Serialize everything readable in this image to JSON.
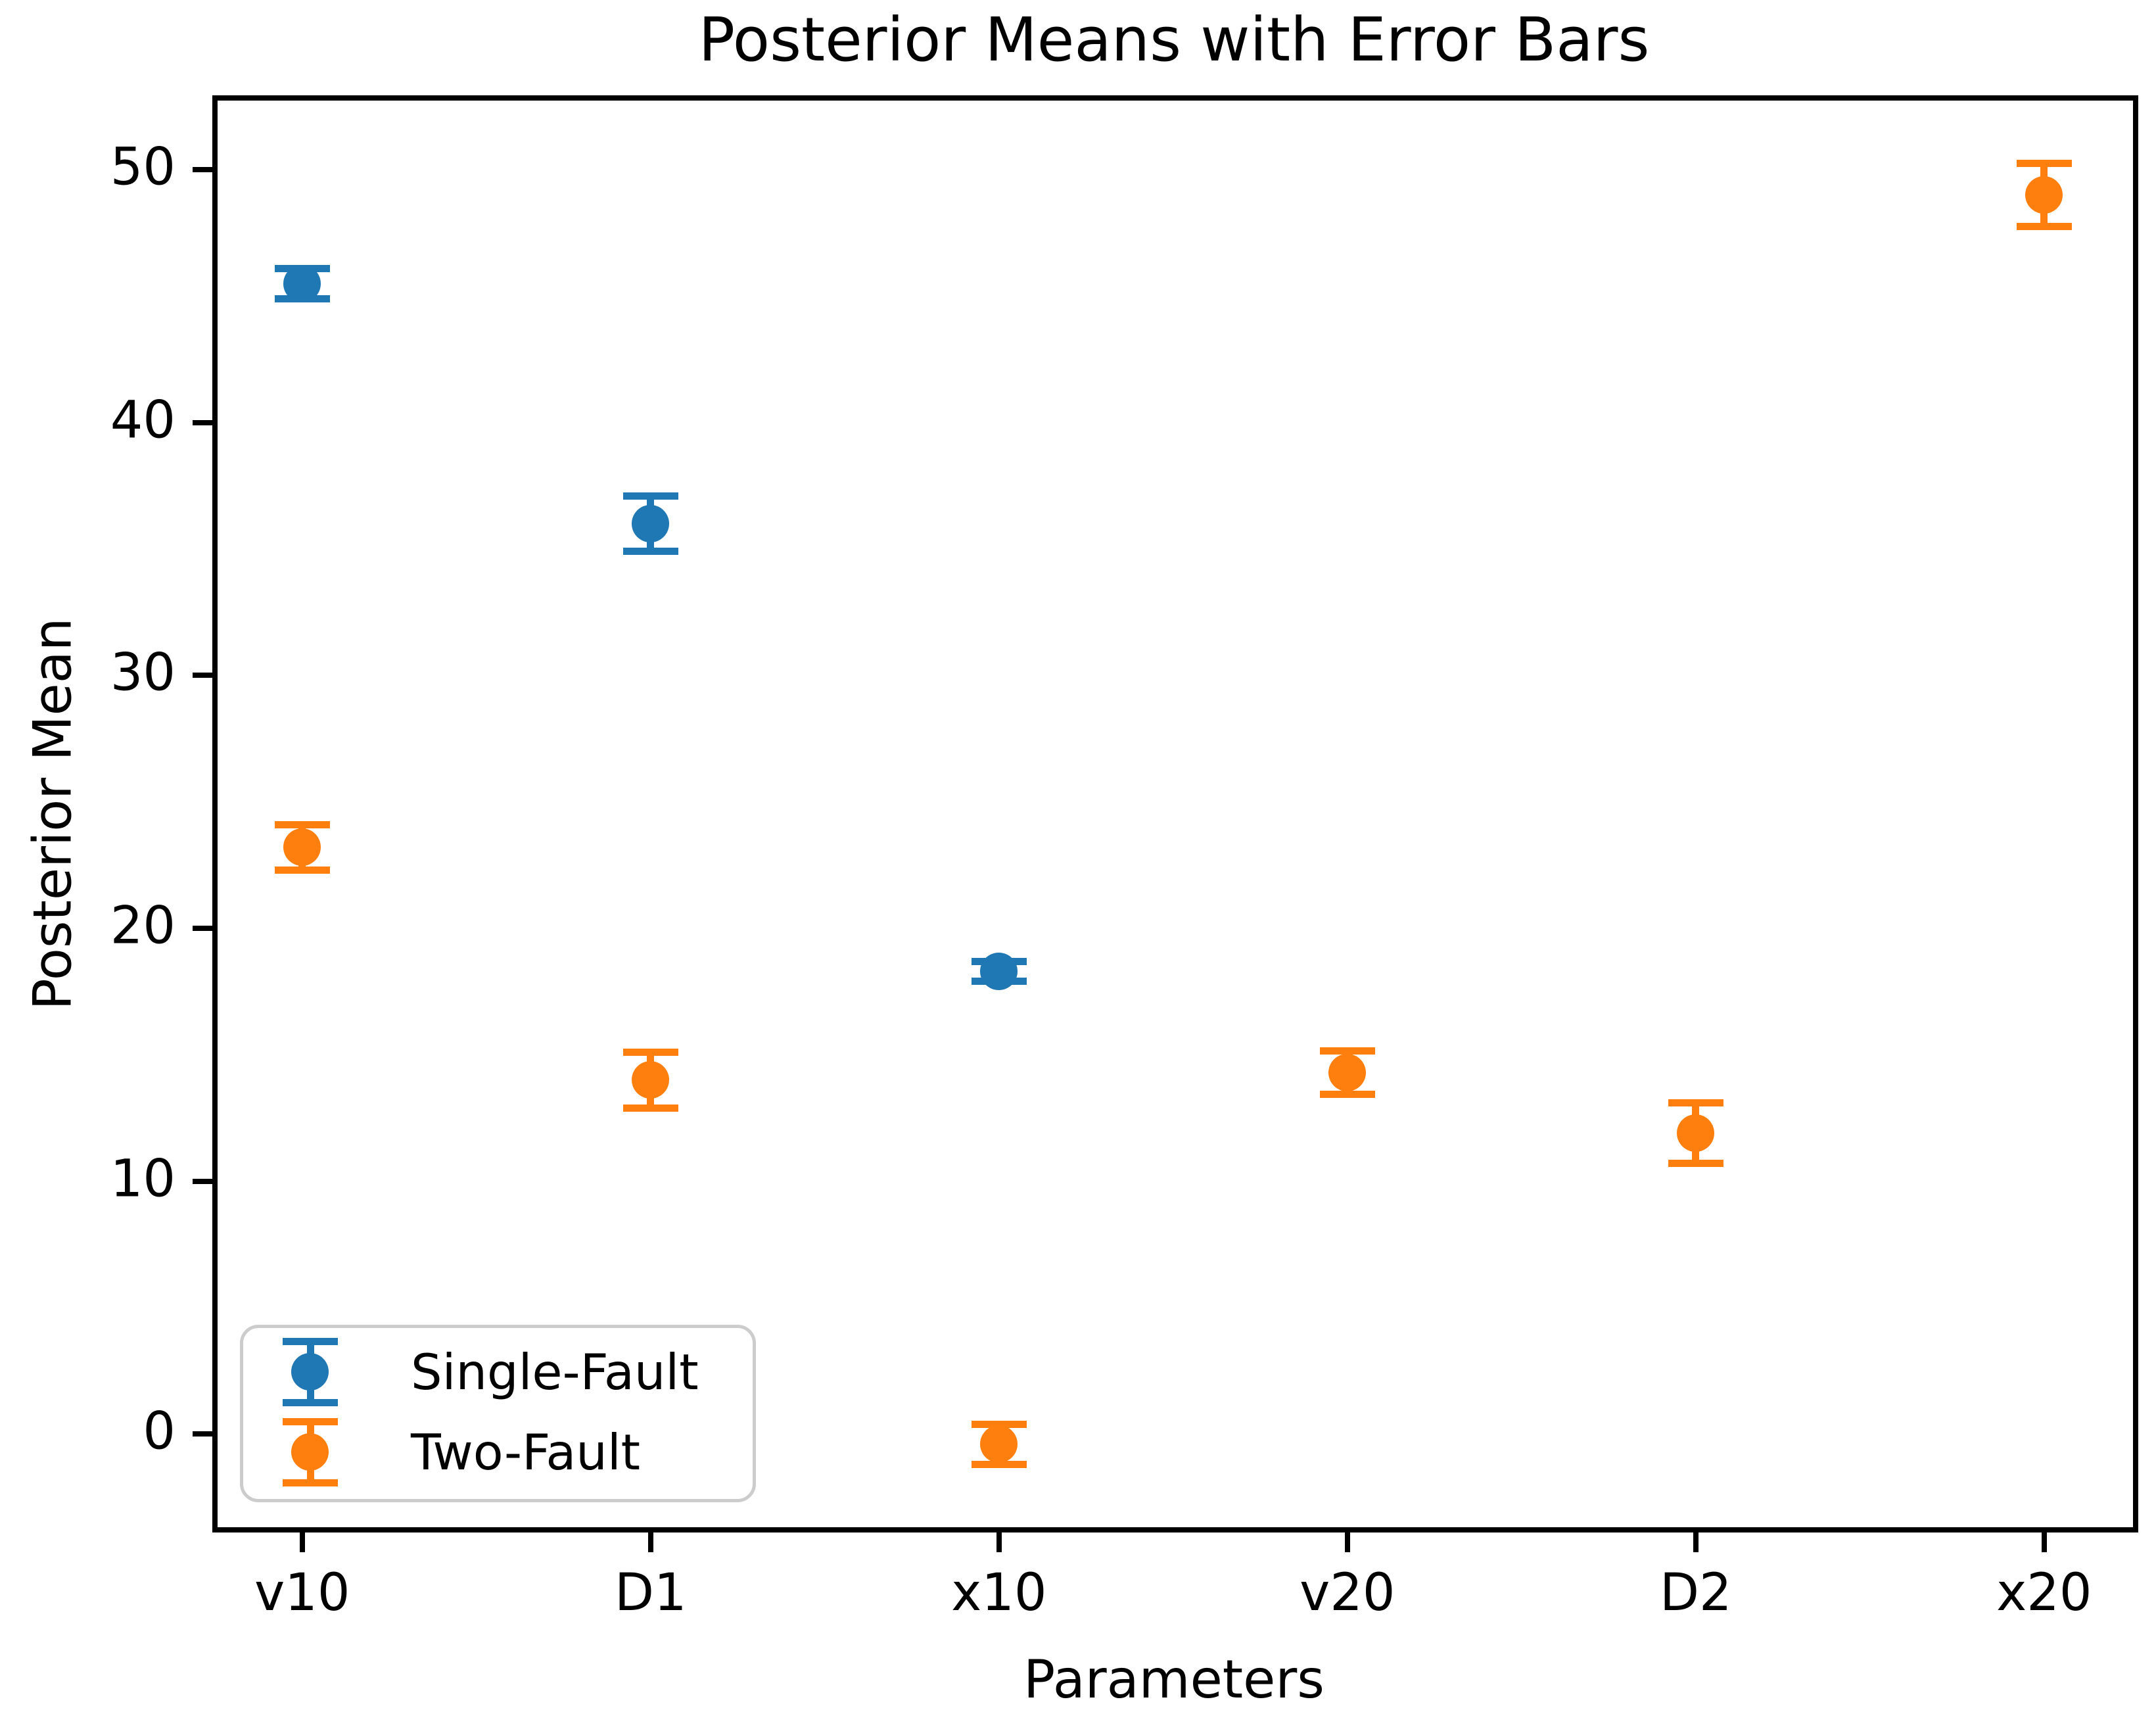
{
  "chart_data": {
    "type": "scatter",
    "subtype": "errorbar",
    "title": "Posterior Means with Error Bars",
    "xlabel": "Parameters",
    "ylabel": "Posterior Mean",
    "categories": [
      "v10",
      "D1",
      "x10",
      "v20",
      "D2",
      "x20"
    ],
    "yticks": [
      0,
      10,
      20,
      30,
      40,
      50
    ],
    "xlim": [
      -0.243,
      5.255
    ],
    "ylim": [
      -3.68,
      52.73
    ],
    "grid": false,
    "legend": {
      "position": "lower left",
      "entries": [
        "Single-Fault",
        "Two-Fault"
      ]
    },
    "series": [
      {
        "name": "Single-Fault",
        "color": "#1f77b4",
        "points": [
          {
            "category": "v10",
            "value": 45.5,
            "error": 0.6
          },
          {
            "category": "D1",
            "value": 36.0,
            "error": 1.1
          },
          {
            "category": "x10",
            "value": 18.3,
            "error": 0.4
          }
        ]
      },
      {
        "name": "Two-Fault",
        "color": "#ff7f0e",
        "points": [
          {
            "category": "v10",
            "value": 23.2,
            "error": 0.9
          },
          {
            "category": "D1",
            "value": 14.0,
            "error": 1.1
          },
          {
            "category": "x10",
            "value": -0.4,
            "error": 0.8
          },
          {
            "category": "v20",
            "value": 14.3,
            "error": 0.85
          },
          {
            "category": "D2",
            "value": 11.9,
            "error": 1.2
          },
          {
            "category": "x20",
            "value": 49.0,
            "error": 1.25
          }
        ]
      }
    ]
  }
}
